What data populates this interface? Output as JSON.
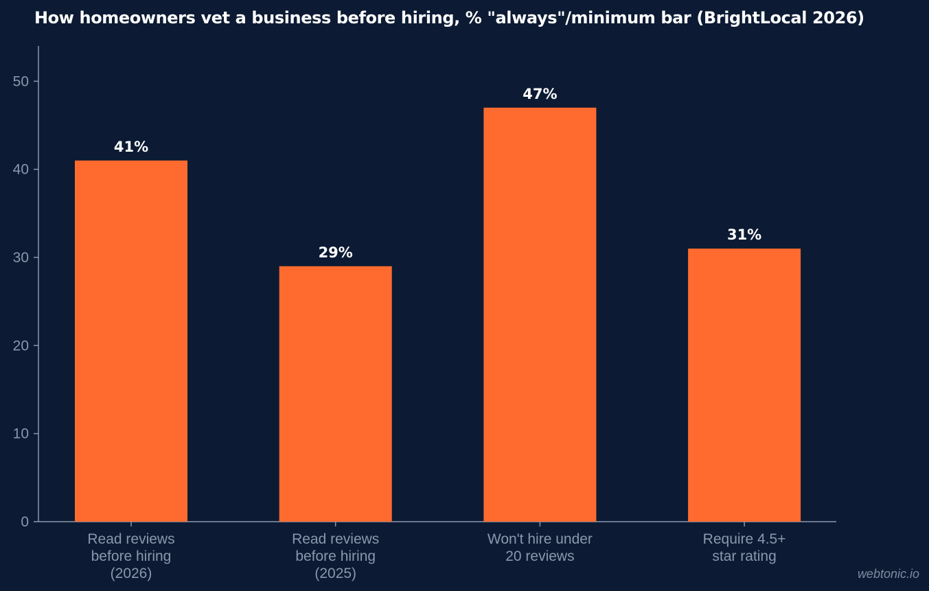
{
  "chart_data": {
    "type": "bar",
    "title": "How homeowners vet a business before hiring, % \"always\"/minimum bar (BrightLocal 2026)",
    "categories": [
      [
        "Read reviews",
        "before hiring",
        "(2026)"
      ],
      [
        "Read reviews",
        "before hiring",
        "(2025)"
      ],
      [
        "Won't hire under",
        "20 reviews"
      ],
      [
        "Require 4.5+",
        "star rating"
      ]
    ],
    "values": [
      41,
      29,
      47,
      31
    ],
    "data_labels": [
      "41%",
      "29%",
      "47%",
      "31%"
    ],
    "yticks": [
      0,
      10,
      20,
      30,
      40,
      50
    ],
    "ylim": [
      0,
      54
    ],
    "xlabel": "",
    "ylabel": "",
    "grid": false,
    "colors": {
      "background": "#0c1b33",
      "bar": "#ff6b2f",
      "axis": "#8b97ad",
      "text": "#ffffff"
    }
  },
  "watermark": "webtonic.io"
}
